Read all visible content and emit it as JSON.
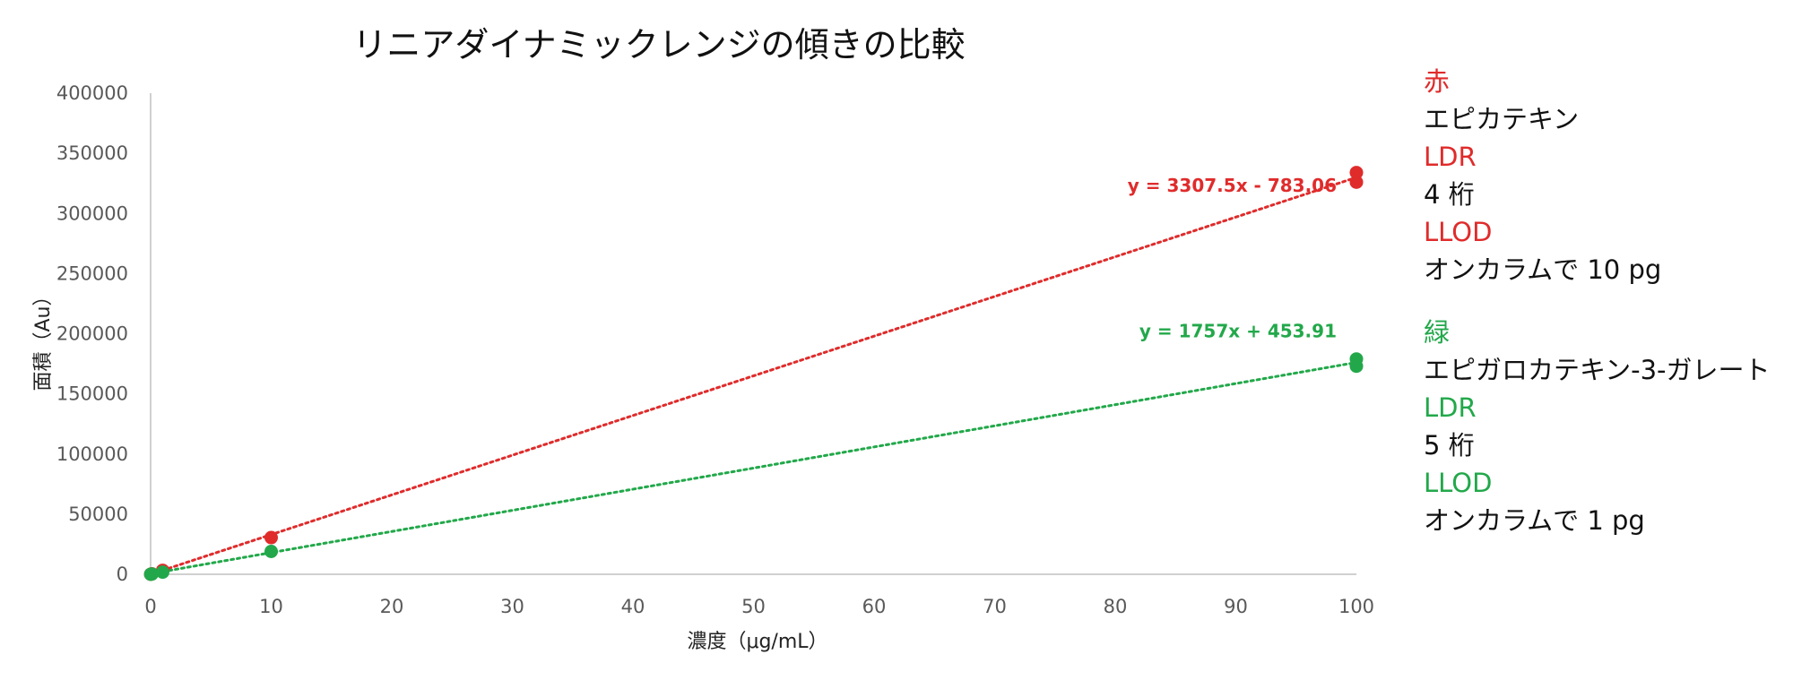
{
  "colors": {
    "red": "#e02b2b",
    "green": "#22a84a",
    "axis": "#d0d0d0",
    "text": "#111111"
  },
  "chart_data": {
    "type": "scatter",
    "title": "リニアダイナミックレンジの傾きの比較",
    "xlabel": "濃度（μg/mL）",
    "ylabel": "面積（Au）",
    "xlim": [
      0,
      100
    ],
    "ylim": [
      0,
      400000
    ],
    "x_ticks": [
      "0",
      "10",
      "20",
      "30",
      "40",
      "50",
      "60",
      "70",
      "80",
      "90",
      "100"
    ],
    "y_ticks": [
      "0",
      "50000",
      "100000",
      "150000",
      "200000",
      "250000",
      "300000",
      "350000",
      "400000"
    ],
    "grid": false,
    "series": [
      {
        "name": "赤",
        "color": "#e02b2b",
        "points": [
          [
            0.01,
            30
          ],
          [
            0.1,
            330
          ],
          [
            1,
            3300
          ],
          [
            10,
            30500
          ],
          [
            100,
            326000
          ],
          [
            100,
            334000
          ]
        ],
        "trendline": {
          "slope": 3307.5,
          "intercept": -783.06
        },
        "equation": "y = 3307.5x - 783.06"
      },
      {
        "name": "緑",
        "color": "#22a84a",
        "points": [
          [
            0.01,
            20
          ],
          [
            0.1,
            180
          ],
          [
            1,
            1800
          ],
          [
            10,
            19000
          ],
          [
            100,
            173000
          ],
          [
            100,
            179000
          ]
        ],
        "trendline": {
          "slope": 1757,
          "intercept": 453.91
        },
        "equation": "y = 1757x + 453.91"
      }
    ]
  },
  "legend": {
    "red": {
      "key": "赤",
      "compound": "エピカテキン",
      "ldr_label": "LDR",
      "ldr_value": "4 桁",
      "llod_label": "LLOD",
      "llod_value": "オンカラムで 10 pg"
    },
    "green": {
      "key": "緑",
      "compound": "エピガロカテキン-3-ガレート",
      "ldr_label": "LDR",
      "ldr_value": "5 桁",
      "llod_label": "LLOD",
      "llod_value": "オンカラムで 1 pg"
    }
  }
}
